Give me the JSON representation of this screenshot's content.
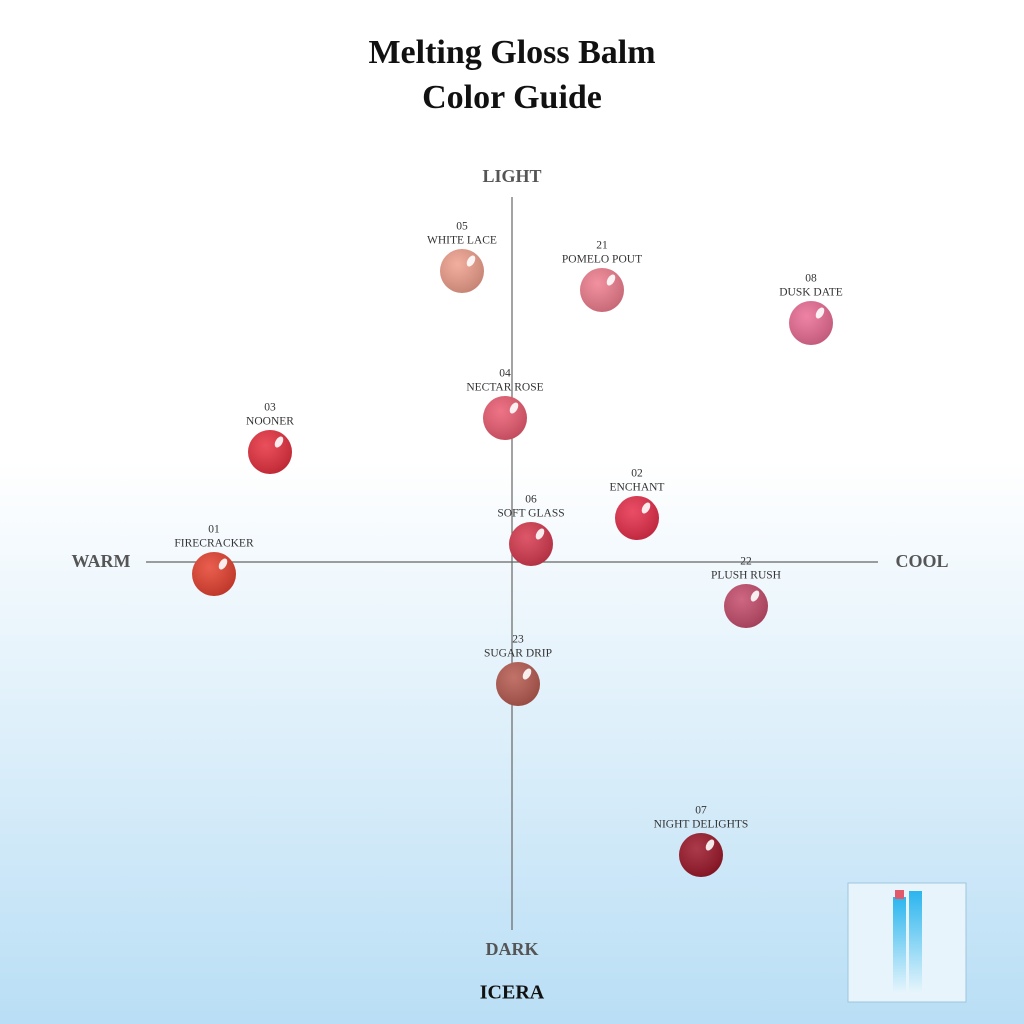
{
  "header": {
    "title": [
      "Melting Gloss Balm",
      "Color Guide"
    ]
  },
  "axes": {
    "top": "LIGHT",
    "bottom": "DARK",
    "left": "WARM",
    "right": "COOL"
  },
  "nodes": [
    {
      "code": "05",
      "name": "WHITE LACE",
      "color": "#ef9f8c"
    },
    {
      "code": "21",
      "name": "POMELO POUT",
      "color": "#ef7d8e"
    },
    {
      "code": "08",
      "name": "DUSK DATE",
      "color": "#ea6c95"
    },
    {
      "code": "04",
      "name": "NECTAR ROSE",
      "color": "#ea5b70"
    },
    {
      "code": "03",
      "name": "NOONER",
      "color": "#e6303e"
    },
    {
      "code": "02",
      "name": "ENCHANT",
      "color": "#e62e4b"
    },
    {
      "code": "06",
      "name": "SOFT GLASS",
      "color": "#d6394e"
    },
    {
      "code": "01",
      "name": "FIRECRACKER",
      "color": "#e5412f"
    },
    {
      "code": "22",
      "name": "PLUSH RUSH",
      "color": "#c54c6b"
    },
    {
      "code": "23",
      "name": "SUGAR DRIP",
      "color": "#b65a4f"
    },
    {
      "code": "07",
      "name": "NIGHT DELIGHTS",
      "color": "#9c1729"
    }
  ],
  "footer": {
    "brand": "ICERA"
  }
}
